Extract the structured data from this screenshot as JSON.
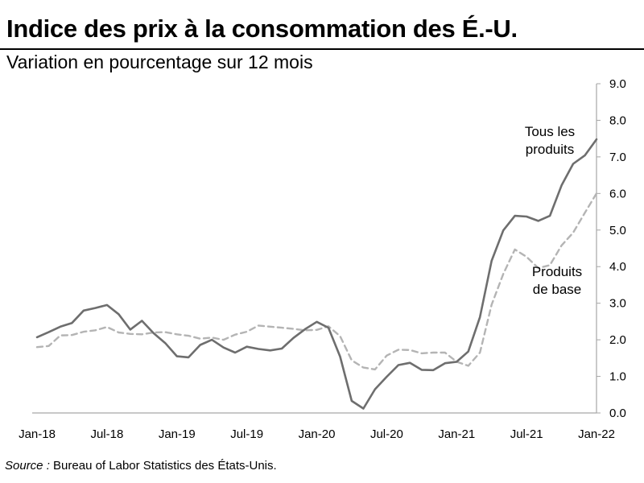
{
  "chart_data": {
    "type": "line",
    "title": "Indice des prix à la consommation des É.-U.",
    "subtitle": "Variation en pourcentage sur 12 mois",
    "source_label": "Source :",
    "source_text": " Bureau of Labor Statistics des États-Unis.",
    "x_tick_labels": [
      "Jan-18",
      "Jul-18",
      "Jan-19",
      "Jul-19",
      "Jan-20",
      "Jul-20",
      "Jan-21",
      "Jul-21",
      "Jan-22"
    ],
    "y_tick_labels": [
      "0.0",
      "1.0",
      "2.0",
      "3.0",
      "4.0",
      "5.0",
      "6.0",
      "7.0",
      "8.0",
      "9.0"
    ],
    "ylim": [
      0,
      9
    ],
    "x_start": "2018-01",
    "x_end": "2022-01",
    "y_axis_side": "right",
    "grid": false,
    "colors": {
      "all_items": "#6e6e6e",
      "core": "#b4b4b4",
      "axis": "#a6a6a6"
    },
    "series": [
      {
        "name": "Tous les produits",
        "label_lines": [
          "Tous les",
          "produits"
        ],
        "style": "solid",
        "values": [
          2.07,
          2.21,
          2.36,
          2.46,
          2.8,
          2.87,
          2.95,
          2.7,
          2.28,
          2.52,
          2.18,
          1.91,
          1.55,
          1.52,
          1.86,
          2.0,
          1.79,
          1.65,
          1.81,
          1.75,
          1.71,
          1.76,
          2.05,
          2.29,
          2.49,
          2.33,
          1.54,
          0.33,
          0.12,
          0.65,
          0.99,
          1.31,
          1.37,
          1.18,
          1.17,
          1.36,
          1.4,
          1.68,
          2.62,
          4.16,
          4.99,
          5.39,
          5.37,
          5.25,
          5.39,
          6.22,
          6.81,
          7.04,
          7.48
        ]
      },
      {
        "name": "Produits de base",
        "label_lines": [
          "Produits",
          "de base"
        ],
        "style": "dashed",
        "values": [
          1.8,
          1.83,
          2.12,
          2.13,
          2.22,
          2.26,
          2.35,
          2.2,
          2.16,
          2.15,
          2.2,
          2.21,
          2.15,
          2.11,
          2.03,
          2.06,
          2.0,
          2.14,
          2.22,
          2.39,
          2.36,
          2.33,
          2.3,
          2.26,
          2.27,
          2.37,
          2.1,
          1.44,
          1.24,
          1.19,
          1.57,
          1.73,
          1.72,
          1.63,
          1.65,
          1.65,
          1.4,
          1.29,
          1.65,
          2.96,
          3.8,
          4.47,
          4.27,
          3.96,
          4.04,
          4.58,
          4.93,
          5.47,
          6.0
        ]
      }
    ]
  }
}
